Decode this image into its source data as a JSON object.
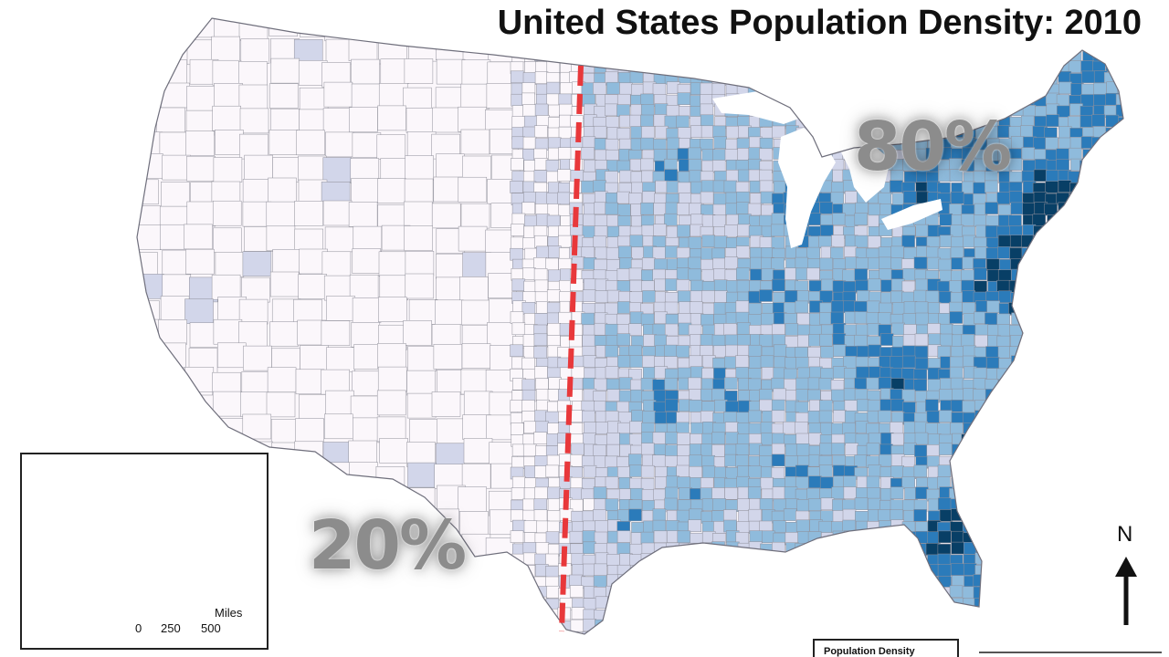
{
  "map": {
    "title": "United States Population Density: 2010",
    "east_share_label": "80%",
    "west_share_label": "20%",
    "divider_color": "#e8383b",
    "density_classes": [
      "#fbf7fb",
      "#d2d6ea",
      "#8fbbdc",
      "#2b7bba",
      "#083f66"
    ],
    "border_color": "#8f8f9a"
  },
  "inset": {
    "scale_units": "Miles",
    "scale_ticks": [
      "0",
      "250",
      "500"
    ]
  },
  "compass": {
    "north_label": "N"
  },
  "legend": {
    "title": "Population Density"
  }
}
